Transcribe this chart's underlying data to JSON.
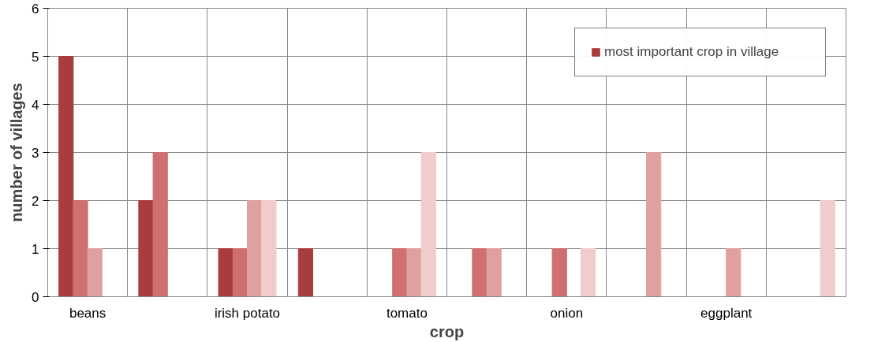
{
  "chart_data": {
    "type": "bar",
    "xlabel": "crop",
    "ylabel": "number of villages",
    "categories": [
      "beans",
      null,
      "irish potato",
      null,
      "tomato",
      null,
      "onion",
      null,
      "eggplant",
      null
    ],
    "series": [
      {
        "name": "most important crop in village",
        "color": "#a93c3c",
        "values": [
          5,
          2,
          1,
          1,
          0,
          0,
          0,
          0,
          0,
          0
        ]
      },
      {
        "color": "#cf6f6f",
        "values": [
          2,
          3,
          1,
          0,
          1,
          1,
          1,
          0,
          0,
          0
        ]
      },
      {
        "color": "#e0a0a0",
        "values": [
          1,
          0,
          2,
          0,
          1,
          1,
          0,
          3,
          1,
          0
        ]
      },
      {
        "color": "#f0cccc",
        "values": [
          0,
          0,
          2,
          0,
          3,
          0,
          1,
          0,
          0,
          2
        ]
      }
    ],
    "ylim": [
      0,
      6
    ],
    "yticks": [
      0,
      1,
      2,
      3,
      4,
      5,
      6
    ],
    "grid": true,
    "legend": "top right"
  }
}
